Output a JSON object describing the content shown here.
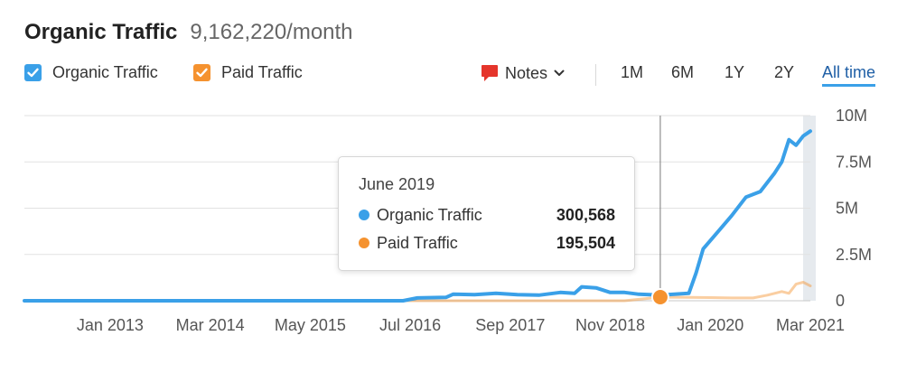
{
  "header": {
    "title": "Organic Traffic",
    "subtitle": "9,162,220/month"
  },
  "legend": [
    {
      "label": "Organic Traffic",
      "color": "#3aa0e8",
      "checked": true
    },
    {
      "label": "Paid Traffic",
      "color": "#f5922f",
      "checked": true
    }
  ],
  "notes": {
    "label": "Notes",
    "icon": "speech-bubble-icon",
    "icon_color": "#e5352b"
  },
  "ranges": [
    "1M",
    "6M",
    "1Y",
    "2Y",
    "All time"
  ],
  "active_range": "All time",
  "tooltip": {
    "date": "June 2019",
    "rows": [
      {
        "name": "Organic Traffic",
        "value": "300,568",
        "color": "#3aa0e8"
      },
      {
        "name": "Paid Traffic",
        "value": "195,504",
        "color": "#f5922f"
      }
    ]
  },
  "chart_data": {
    "type": "line",
    "title": "",
    "xlabel": "",
    "ylabel": "",
    "x_tick_labels": [
      "Jan 2013",
      "Mar 2014",
      "May 2015",
      "Jul 2016",
      "Sep 2017",
      "Nov 2018",
      "Jan 2020",
      "Mar 2021"
    ],
    "x_ticks": [
      "2013-01",
      "2014-03",
      "2015-05",
      "2016-07",
      "2017-09",
      "2018-11",
      "2020-01",
      "2021-03"
    ],
    "xlim": [
      "2012-01",
      "2021-03"
    ],
    "y_tick_labels": [
      "0",
      "2.5M",
      "5M",
      "7.5M",
      "10M"
    ],
    "y_ticks": [
      0,
      2500000,
      5000000,
      7500000,
      10000000
    ],
    "ylim": [
      0,
      10000000
    ],
    "y_axis_side": "right",
    "grid": true,
    "highlight_x": "2019-06",
    "series": [
      {
        "name": "Organic Traffic",
        "color": "#3aa0e8",
        "points": [
          [
            "2012-01",
            0
          ],
          [
            "2016-06",
            0
          ],
          [
            "2016-08",
            150000
          ],
          [
            "2016-12",
            180000
          ],
          [
            "2017-01",
            350000
          ],
          [
            "2017-04",
            330000
          ],
          [
            "2017-07",
            400000
          ],
          [
            "2017-10",
            330000
          ],
          [
            "2018-01",
            300000
          ],
          [
            "2018-04",
            450000
          ],
          [
            "2018-06",
            400000
          ],
          [
            "2018-07",
            750000
          ],
          [
            "2018-09",
            700000
          ],
          [
            "2018-11",
            450000
          ],
          [
            "2019-01",
            450000
          ],
          [
            "2019-03",
            350000
          ],
          [
            "2019-06",
            300568
          ],
          [
            "2019-08",
            350000
          ],
          [
            "2019-10",
            400000
          ],
          [
            "2019-11",
            1500000
          ],
          [
            "2019-12",
            2800000
          ],
          [
            "2020-02",
            3700000
          ],
          [
            "2020-04",
            4600000
          ],
          [
            "2020-06",
            5600000
          ],
          [
            "2020-08",
            5900000
          ],
          [
            "2020-10",
            6900000
          ],
          [
            "2020-11",
            7500000
          ],
          [
            "2020-12",
            8700000
          ],
          [
            "2021-01",
            8400000
          ],
          [
            "2021-02",
            8900000
          ],
          [
            "2021-03",
            9162220
          ]
        ]
      },
      {
        "name": "Paid Traffic",
        "color": "#f5922f",
        "points": [
          [
            "2012-01",
            0
          ],
          [
            "2019-01",
            0
          ],
          [
            "2019-06",
            195504
          ],
          [
            "2019-10",
            180000
          ],
          [
            "2020-01",
            170000
          ],
          [
            "2020-04",
            150000
          ],
          [
            "2020-07",
            150000
          ],
          [
            "2020-09",
            300000
          ],
          [
            "2020-11",
            500000
          ],
          [
            "2020-12",
            400000
          ],
          [
            "2021-01",
            900000
          ],
          [
            "2021-02",
            1000000
          ],
          [
            "2021-03",
            800000
          ]
        ]
      }
    ]
  }
}
